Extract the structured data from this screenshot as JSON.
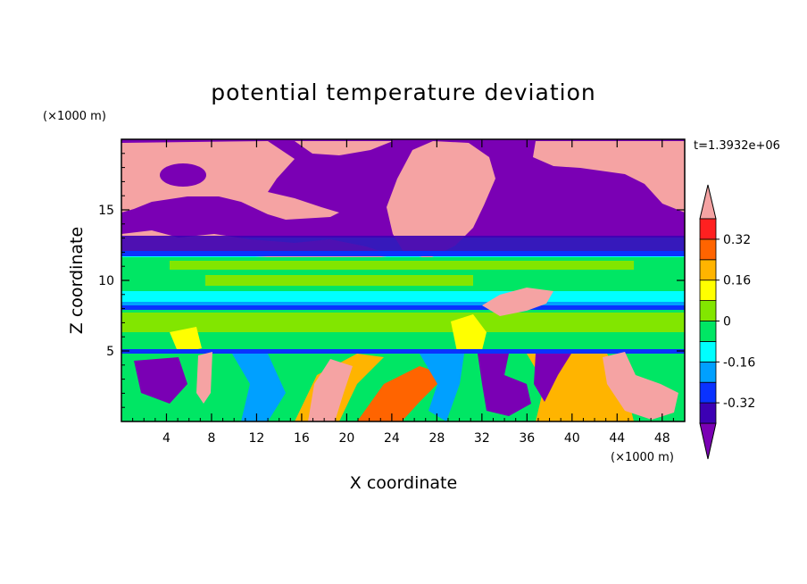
{
  "chart_data": {
    "type": "heatmap",
    "title": "potential temperature deviation",
    "xlabel": "X coordinate",
    "ylabel": "Z coordinate",
    "x_unit": "(×1000 m)",
    "y_unit": "(×1000 m)",
    "time_label": "t=1.3932e+06",
    "xlim": [
      0,
      50
    ],
    "ylim": [
      0,
      20
    ],
    "x_ticks": [
      4,
      8,
      12,
      16,
      20,
      24,
      28,
      32,
      36,
      40,
      44,
      48
    ],
    "y_ticks": [
      5,
      10,
      15
    ],
    "grid": false,
    "colorbar": {
      "levels": [
        -0.4,
        -0.32,
        -0.24,
        -0.16,
        -0.08,
        0,
        0.08,
        0.16,
        0.24,
        0.32,
        0.4
      ],
      "tick_values": [
        -0.32,
        -0.16,
        0,
        0.16,
        0.32
      ],
      "tick_labels": [
        "-0.32",
        "-0.16",
        "0",
        "0.16",
        "0.32"
      ],
      "colors": [
        "#7a00b4",
        "#3c00b4",
        "#0a32ff",
        "#00a0ff",
        "#00ffff",
        "#00e664",
        "#82e600",
        "#ffff00",
        "#ffb400",
        "#ff6400",
        "#ff2020",
        "#f5a3a3"
      ],
      "extend": "both"
    }
  }
}
